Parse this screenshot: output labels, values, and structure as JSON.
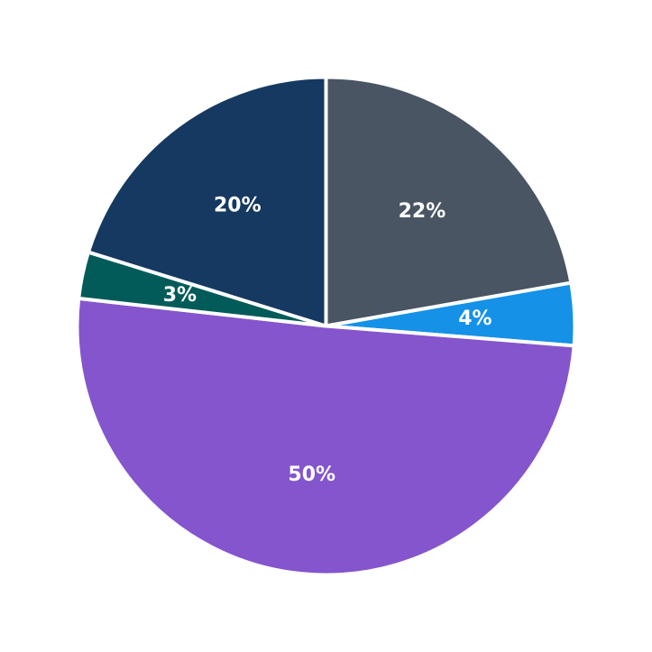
{
  "chart_data": {
    "type": "pie",
    "title": "",
    "start_angle": "top",
    "direction": "clockwise",
    "slices": [
      {
        "label": "",
        "value": 22,
        "display": "22%",
        "color": "#4a5563"
      },
      {
        "label": "",
        "value": 4,
        "display": "4%",
        "color": "#1591e8"
      },
      {
        "label": "",
        "value": 50,
        "display": "50%",
        "color": "#8455cc"
      },
      {
        "label": "",
        "value": 3,
        "display": "3%",
        "color": "#025b59"
      },
      {
        "label": "",
        "value": 20,
        "display": "20%",
        "color": "#153960"
      }
    ]
  }
}
